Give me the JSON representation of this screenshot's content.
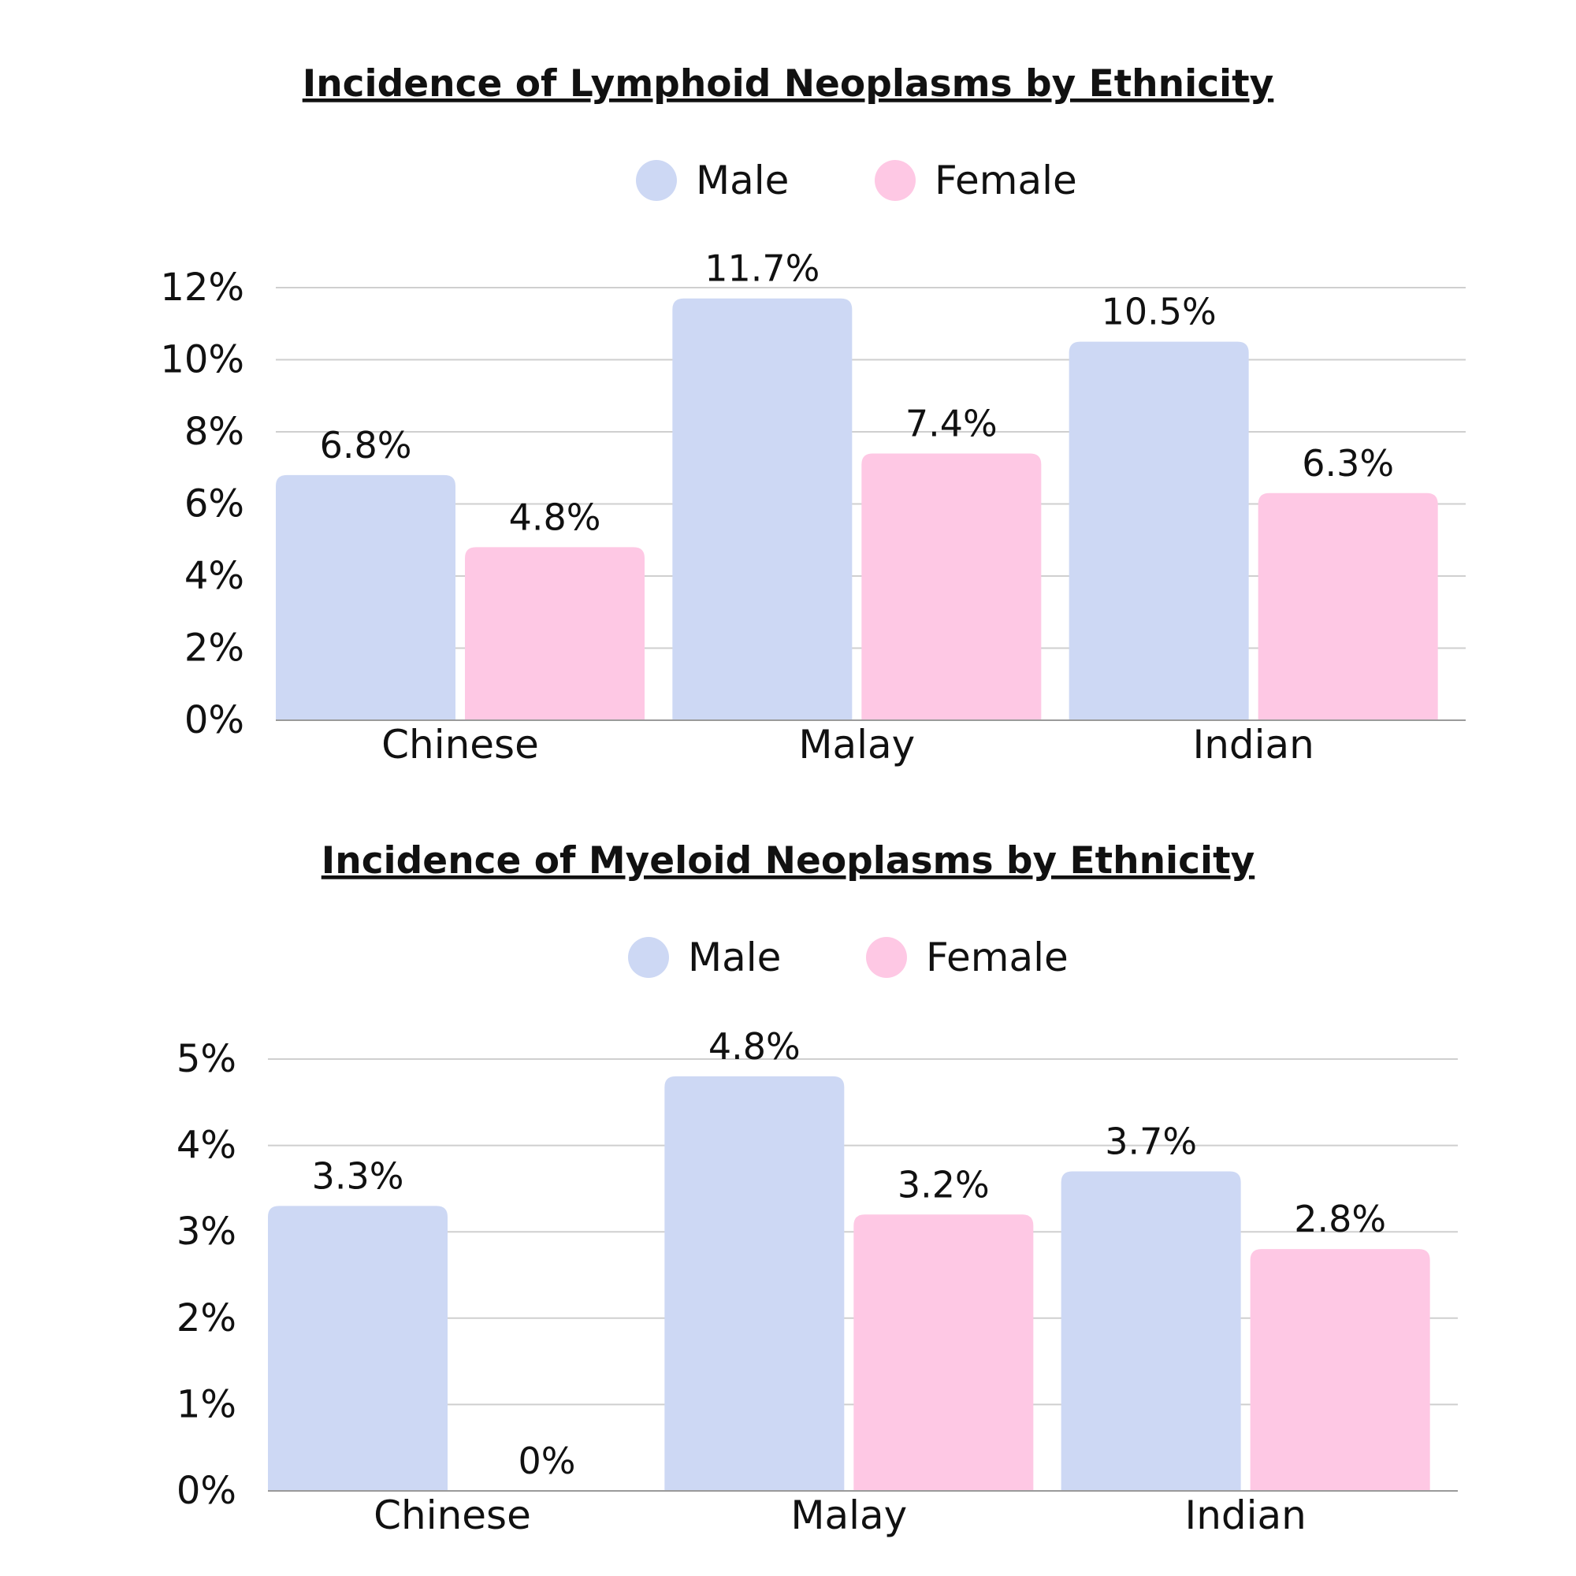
{
  "colors": {
    "male": "#cdd8f4",
    "female": "#fec8e4",
    "grid": "#cfcfcf",
    "axis": "#9a9a9a",
    "text": "#111111"
  },
  "chart_data": [
    {
      "type": "bar",
      "title": "Incidence of Lymphoid Neoplasms by Ethnicity",
      "categories": [
        "Chinese",
        "Malay",
        "Indian"
      ],
      "series": [
        {
          "name": "Male",
          "values": [
            6.8,
            11.7,
            10.5
          ],
          "labels": [
            "6.8%",
            "11.7%",
            "10.5%"
          ]
        },
        {
          "name": "Female",
          "values": [
            4.8,
            7.4,
            6.3
          ],
          "labels": [
            "4.8%",
            "7.4%",
            "6.3%"
          ]
        }
      ],
      "ylim": [
        0,
        12
      ],
      "yticks": [
        "0%",
        "2%",
        "4%",
        "6%",
        "8%",
        "10%",
        "12%"
      ],
      "grid": true,
      "legend": "top-center"
    },
    {
      "type": "bar",
      "title": "Incidence of Myeloid Neoplasms by Ethnicity",
      "categories": [
        "Chinese",
        "Malay",
        "Indian"
      ],
      "series": [
        {
          "name": "Male",
          "values": [
            3.3,
            4.8,
            3.7
          ],
          "labels": [
            "3.3%",
            "4.8%",
            "3.7%"
          ]
        },
        {
          "name": "Female",
          "values": [
            0,
            3.2,
            2.8
          ],
          "labels": [
            "0%",
            "3.2%",
            "2.8%"
          ]
        }
      ],
      "ylim": [
        0,
        5
      ],
      "yticks": [
        "0%",
        "1%",
        "2%",
        "3%",
        "4%",
        "5%"
      ],
      "grid": true,
      "legend": "top-center"
    }
  ]
}
